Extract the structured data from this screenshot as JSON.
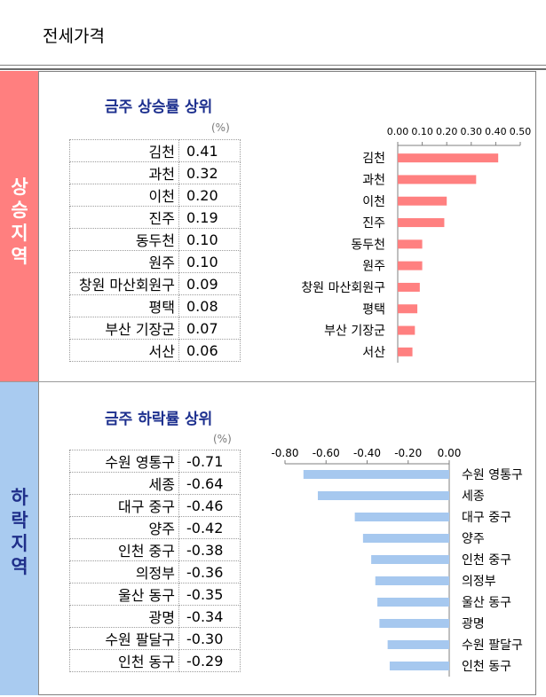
{
  "page": {
    "title": "전세가격"
  },
  "rising": {
    "band_label": [
      "상",
      "승",
      "지",
      "역"
    ],
    "title": "금주 상승률 상위",
    "unit": "(%)",
    "rows": [
      {
        "name": "김천",
        "value": "0.41"
      },
      {
        "name": "과천",
        "value": "0.32"
      },
      {
        "name": "이천",
        "value": "0.20"
      },
      {
        "name": "진주",
        "value": "0.19"
      },
      {
        "name": "동두천",
        "value": "0.10"
      },
      {
        "name": "원주",
        "value": "0.10"
      },
      {
        "name": "창원 마산회원구",
        "value": "0.09"
      },
      {
        "name": "평택",
        "value": "0.08"
      },
      {
        "name": "부산 기장군",
        "value": "0.07"
      },
      {
        "name": "서산",
        "value": "0.06"
      }
    ]
  },
  "falling": {
    "band_label": [
      "하",
      "락",
      "지",
      "역"
    ],
    "title": "금주 하락률 상위",
    "unit": "(%)",
    "rows": [
      {
        "name": "수원 영통구",
        "value": "-0.71"
      },
      {
        "name": "세종",
        "value": "-0.64"
      },
      {
        "name": "대구 중구",
        "value": "-0.46"
      },
      {
        "name": "양주",
        "value": "-0.42"
      },
      {
        "name": "인천 중구",
        "value": "-0.38"
      },
      {
        "name": "의정부",
        "value": "-0.36"
      },
      {
        "name": "울산 동구",
        "value": "-0.35"
      },
      {
        "name": "광명",
        "value": "-0.34"
      },
      {
        "name": "수원 팔달구",
        "value": "-0.30"
      },
      {
        "name": "인천 동구",
        "value": "-0.29"
      }
    ]
  },
  "colors": {
    "rising_bar": "#ff8080",
    "falling_bar": "#a6c8ef",
    "rising_band": "#ff7f7f",
    "falling_band": "#a9cbf0",
    "title_text": "#1c2f8e"
  },
  "chart_data": [
    {
      "type": "bar",
      "orientation": "horizontal",
      "categories": [
        "김천",
        "과천",
        "이천",
        "진주",
        "동두천",
        "원주",
        "창원 마산회원구",
        "평택",
        "부산 기장군",
        "서산"
      ],
      "values": [
        0.41,
        0.32,
        0.2,
        0.19,
        0.1,
        0.1,
        0.09,
        0.08,
        0.07,
        0.06
      ],
      "xlim": [
        0,
        0.5
      ],
      "ticks": [
        0,
        0.1,
        0.2,
        0.3,
        0.4,
        0.5
      ],
      "tick_labels": [
        "0.00",
        "0.10",
        "0.20",
        "0.30",
        "0.40",
        "0.50"
      ],
      "axis_position": "top"
    },
    {
      "type": "bar",
      "orientation": "horizontal",
      "categories": [
        "수원 영통구",
        "세종",
        "대구 중구",
        "양주",
        "인천 중구",
        "의정부",
        "울산 동구",
        "광명",
        "수원 팔달구",
        "인천 동구"
      ],
      "values": [
        -0.71,
        -0.64,
        -0.46,
        -0.42,
        -0.38,
        -0.36,
        -0.35,
        -0.34,
        -0.3,
        -0.29
      ],
      "xlim": [
        -0.8,
        0
      ],
      "ticks": [
        -0.8,
        -0.6,
        -0.4,
        -0.2,
        0
      ],
      "tick_labels": [
        "-0.80",
        "-0.60",
        "-0.40",
        "-0.20",
        "0.00"
      ],
      "axis_position": "top"
    }
  ]
}
